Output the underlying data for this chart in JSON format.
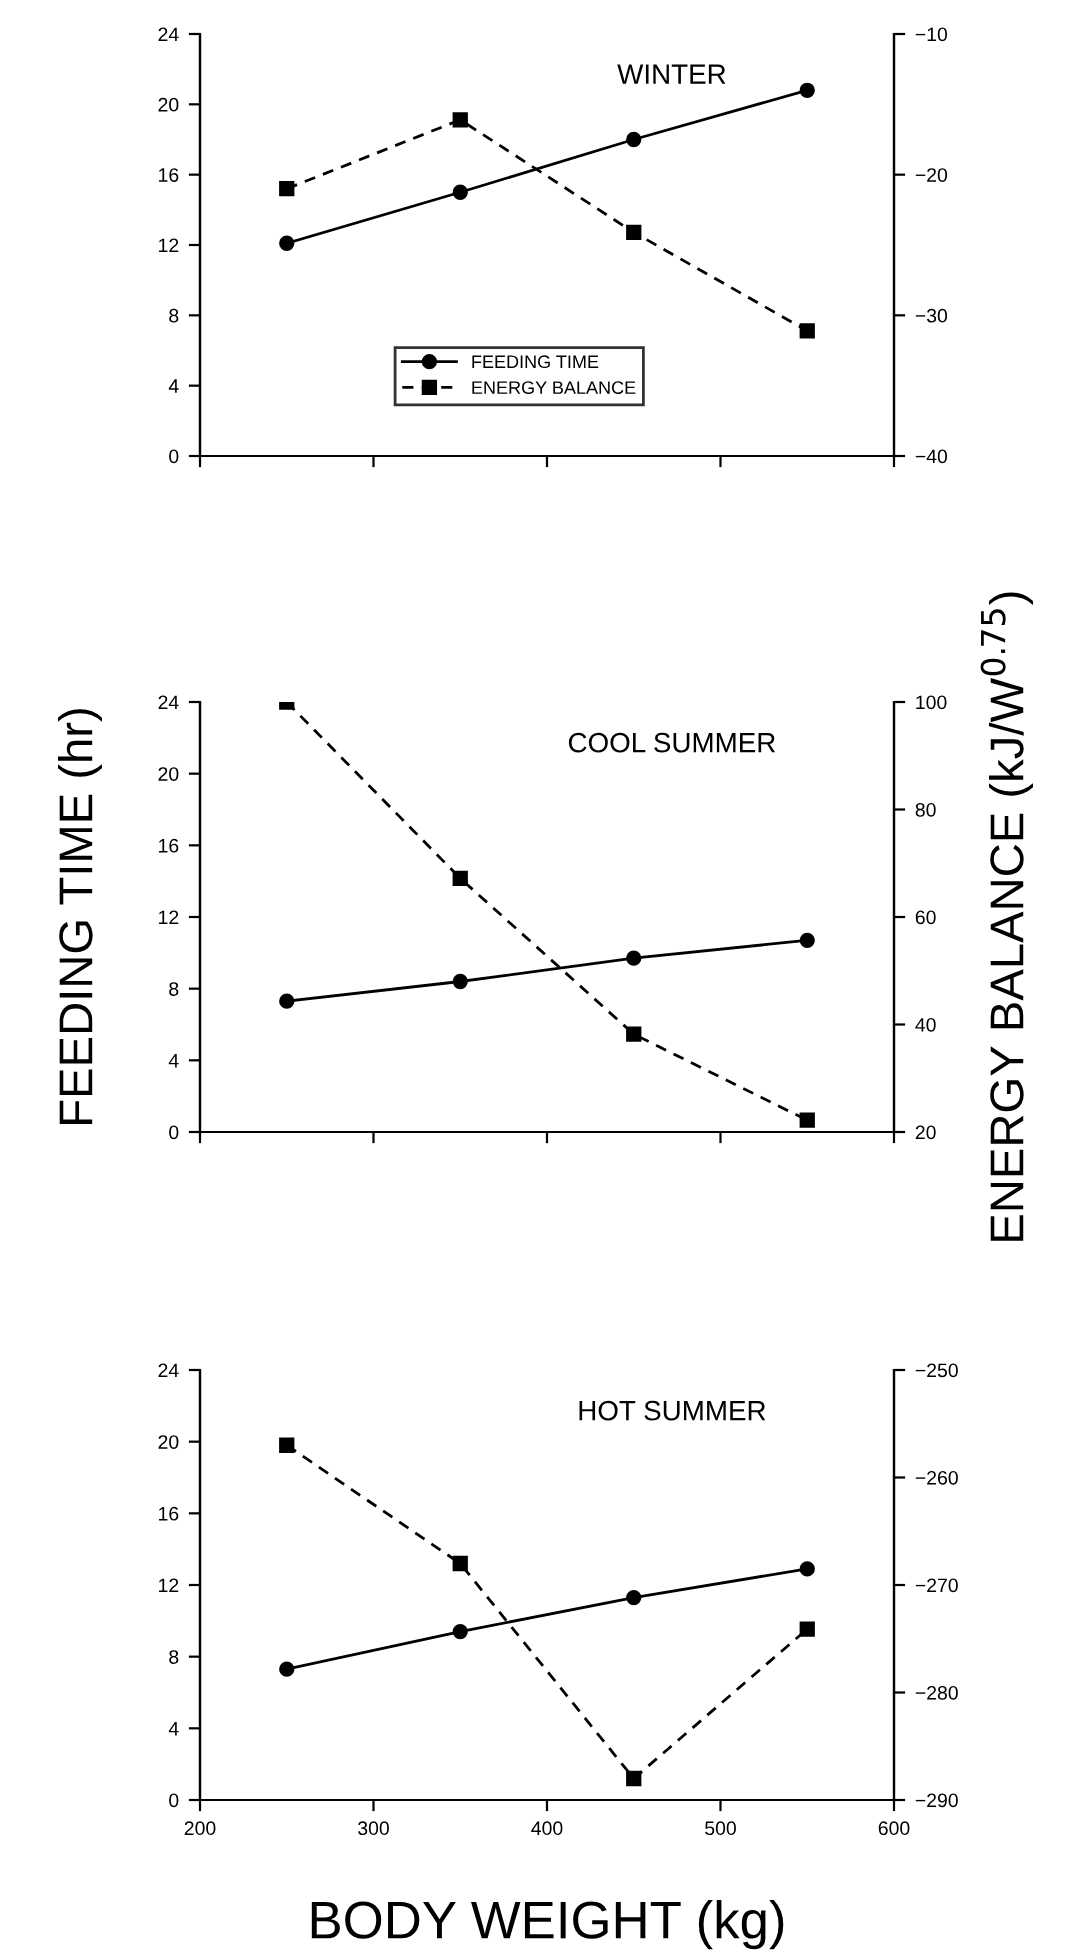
{
  "chart_data": [
    {
      "type": "line",
      "title": "WINTER",
      "x": [
        250,
        350,
        450,
        550
      ],
      "xlim": [
        200,
        600
      ],
      "xticks": [
        {
          "value": 200,
          "label": null
        },
        {
          "value": 300,
          "label": null
        },
        {
          "value": 400,
          "label": null
        },
        {
          "value": 500,
          "label": null
        },
        {
          "value": 600,
          "label": null
        }
      ],
      "ylim": [
        0,
        24
      ],
      "yticks": [
        0,
        4,
        8,
        12,
        16,
        20,
        24
      ],
      "y2lim": [
        -40,
        -10
      ],
      "y2ticks": [
        {
          "value": -40,
          "label": "−40"
        },
        {
          "value": -30,
          "label": "−30"
        },
        {
          "value": -20,
          "label": "−20"
        },
        {
          "value": -10,
          "label": "−10"
        }
      ],
      "tick_labels": "y",
      "legend": "bottom",
      "grid": false,
      "series": [
        {
          "name": "FEEDING TIME",
          "color": "#000000",
          "marker": "circle",
          "line_style": "solid",
          "values": [
            12.1,
            15.0,
            18.0,
            20.8
          ]
        },
        {
          "name": "ENERGY BALANCE",
          "color": "#000000",
          "marker": "square",
          "line_style": "dashed",
          "axis": "y2",
          "values": [
            -21.0,
            -16.1,
            -24.1,
            -31.1
          ]
        }
      ]
    },
    {
      "type": "line",
      "title": "COOL SUMMER",
      "ylabel": "FEEDING TIME (hr)",
      "y2label": "ENERGY BALANCE (kJ/W$^{0.75}$)",
      "x": [
        250,
        350,
        450,
        550
      ],
      "xlim": [
        200,
        600
      ],
      "xticks": [
        {
          "value": 200,
          "label": null
        },
        {
          "value": 300,
          "label": null
        },
        {
          "value": 400,
          "label": null
        },
        {
          "value": 500,
          "label": null
        },
        {
          "value": 600,
          "label": null
        }
      ],
      "ylim": [
        0,
        24
      ],
      "yticks": [
        0,
        4,
        8,
        12,
        16,
        20,
        24
      ],
      "y2lim": [
        20,
        100
      ],
      "y2ticks": [
        20,
        40,
        60,
        80,
        100
      ],
      "tick_labels": "y",
      "grid": false,
      "series": [
        {
          "color": "#000000",
          "marker": "circle",
          "line_style": "solid",
          "values": [
            7.3,
            8.4,
            9.7,
            10.7
          ]
        },
        {
          "color": "#000000",
          "marker": "square",
          "line_style": "dashed",
          "axis": "y2",
          "values": [
            100,
            67.2,
            38.2,
            22.2
          ]
        }
      ]
    },
    {
      "type": "line",
      "title": "HOT SUMMER",
      "xlabel": "BODY WEIGHT (kg)",
      "x": [
        250,
        350,
        450,
        550
      ],
      "xlim": [
        200,
        600
      ],
      "xticks": [
        200,
        300,
        400,
        500,
        600
      ],
      "ylim": [
        0,
        24
      ],
      "yticks": [
        0,
        4,
        8,
        12,
        16,
        20,
        24
      ],
      "y2lim": [
        -290,
        -250
      ],
      "y2ticks": [
        {
          "value": -290,
          "label": "−290"
        },
        {
          "value": -280,
          "label": "−280"
        },
        {
          "value": -270,
          "label": "−270"
        },
        {
          "value": -260,
          "label": "−260"
        },
        {
          "value": -250,
          "label": "−250"
        }
      ],
      "grid": false,
      "series": [
        {
          "color": "#000000",
          "marker": "circle",
          "line_style": "solid",
          "values": [
            7.3,
            9.4,
            11.3,
            12.9
          ]
        },
        {
          "color": "#000000",
          "marker": "square",
          "line_style": "dashed",
          "axis": "y2",
          "values": [
            -257.0,
            -268.0,
            -288.0,
            -274.1
          ]
        }
      ]
    }
  ]
}
